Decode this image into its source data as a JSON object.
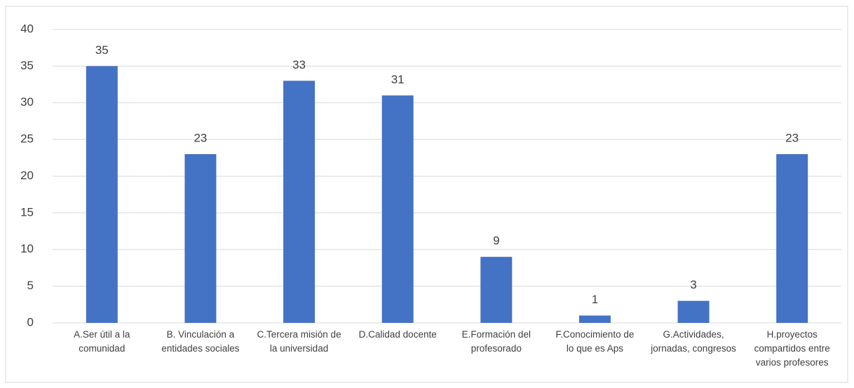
{
  "chart_data": {
    "type": "bar",
    "categories": [
      "A.Ser útil a la comunidad",
      "B. Vinculación a entidades sociales",
      "C.Tercera misión de la universidad",
      "D.Calidad docente",
      "E.Formación del profesorado",
      "F.Conocimiento de lo que es Aps",
      "G.Actividades, jornadas, congresos",
      "H.proyectos compartidos entre varios profesores"
    ],
    "values": [
      35,
      23,
      33,
      31,
      9,
      1,
      3,
      23
    ],
    "color": "#4472c4",
    "ylim": [
      0,
      40
    ],
    "yticks": [
      0,
      5,
      10,
      15,
      20,
      25,
      30,
      35,
      40
    ],
    "grid": true
  }
}
